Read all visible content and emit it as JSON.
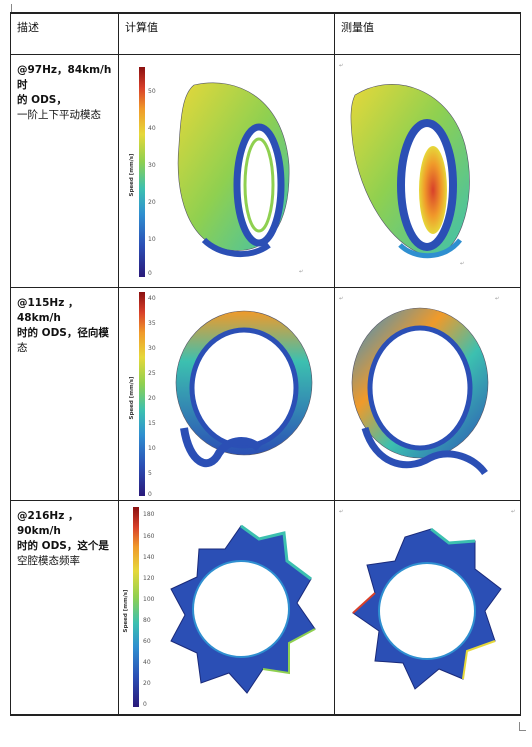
{
  "table": {
    "headers": [
      "描述",
      "计算值",
      "测量值"
    ],
    "rows": [
      {
        "desc_line1": "@97Hz，84km/h 时",
        "desc_line2": "的 ODS，",
        "desc_line3": "一阶上下平动模态",
        "colorbar": {
          "label": "Speed [mm/s]",
          "ticks": [
            "50",
            "40",
            "30",
            "20",
            "10",
            "0"
          ]
        }
      },
      {
        "desc_line1": "@115Hz ， 48km/h",
        "desc_line2": "时的 ODS，径向模",
        "desc_line3": "态",
        "colorbar": {
          "label": "Speed [mm/s]",
          "ticks": [
            "40",
            "35",
            "30",
            "25",
            "20",
            "15",
            "10",
            "5",
            "0"
          ]
        }
      },
      {
        "desc_line1": "@216Hz ， 90km/h",
        "desc_line2": "时的 ODS，这个是",
        "desc_line3": "空腔模态频率",
        "colorbar": {
          "label": "Speed [mm/s]",
          "ticks": [
            "180",
            "160",
            "140",
            "120",
            "100",
            "80",
            "60",
            "40",
            "20",
            "0"
          ]
        }
      }
    ]
  },
  "colors": {
    "colormap": [
      "#2a1a7a",
      "#2b4fb5",
      "#2f8fd0",
      "#3cc0b0",
      "#8fd050",
      "#e6d83a",
      "#f09a2a",
      "#d8402a",
      "#8a1010"
    ]
  }
}
